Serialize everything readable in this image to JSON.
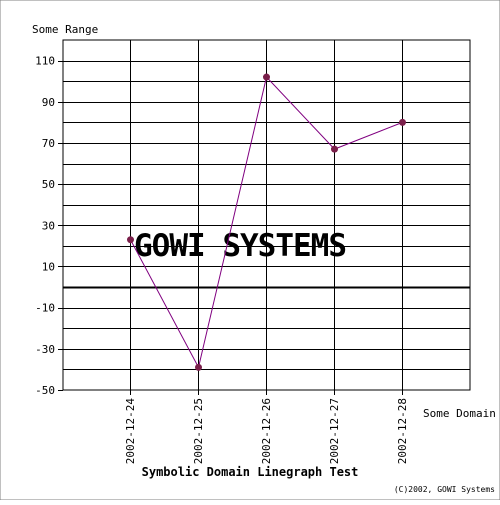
{
  "chart_data": {
    "type": "line",
    "title": "Symbolic Domain Linegraph Test",
    "xlabel": "Some Domain",
    "ylabel": "Some Range",
    "categories": [
      "2002-12-24",
      "2002-12-25",
      "2002-12-26",
      "2002-12-27",
      "2002-12-28"
    ],
    "series": [
      {
        "values": [
          23,
          -39,
          102,
          67,
          80
        ]
      }
    ],
    "ylim": [
      -50,
      120
    ],
    "yticks": [
      110,
      90,
      70,
      50,
      30,
      10,
      -10,
      -30,
      -50
    ],
    "grid": true,
    "legend": "none",
    "colors": {
      "line": "#800080",
      "marker": "#7a1f4a",
      "grid": "#000000"
    }
  },
  "watermark": "GOWI SYSTEMS",
  "copyright": "(C)2002, GOWI Systems"
}
